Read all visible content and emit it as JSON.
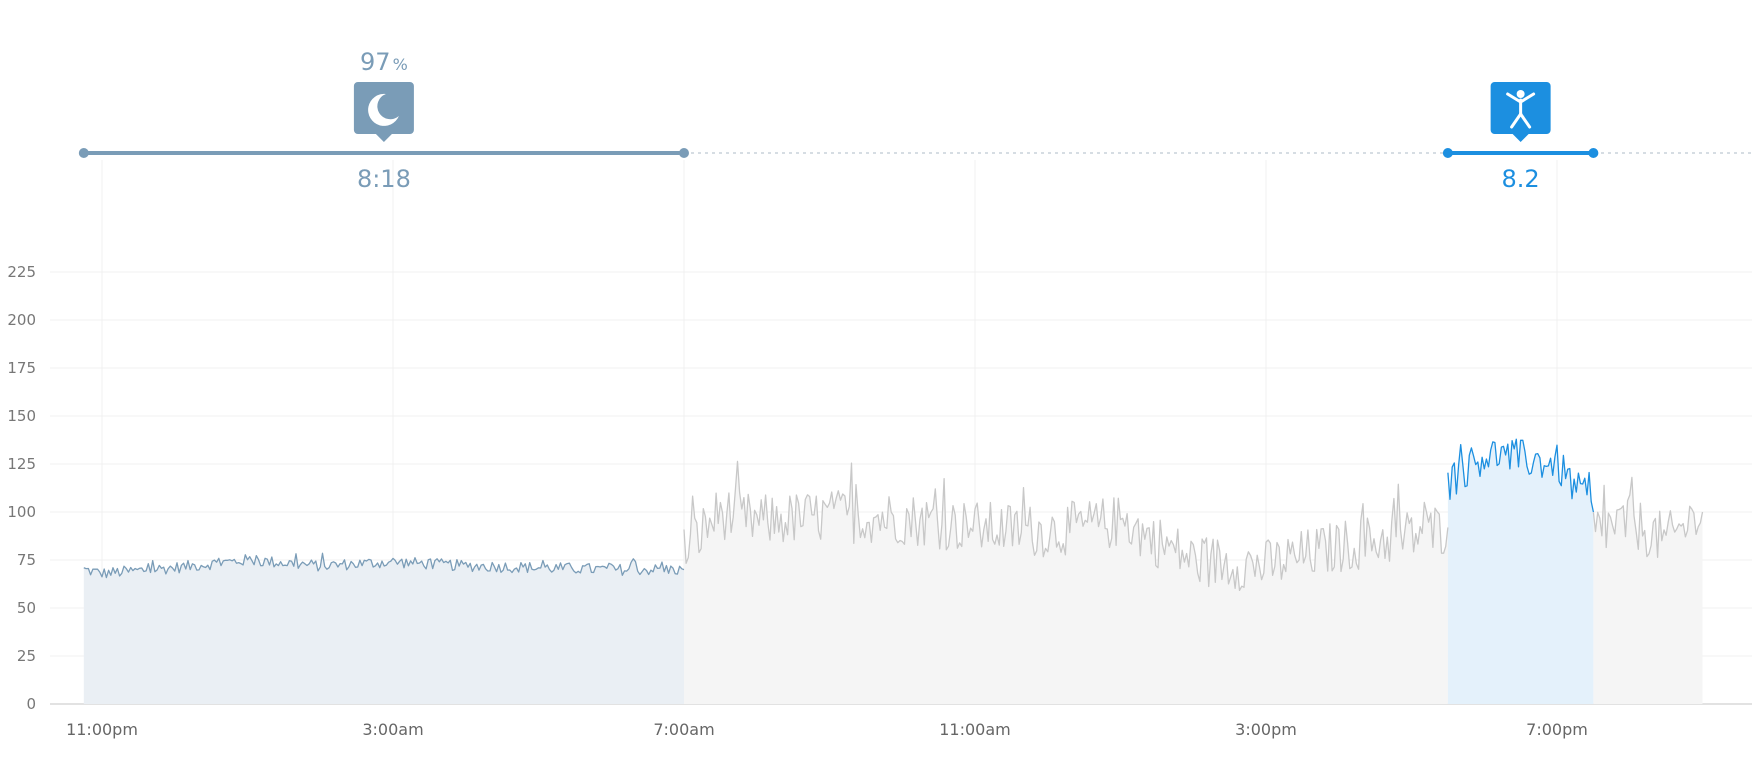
{
  "chart_data": {
    "type": "area",
    "title": "",
    "xlabel": "",
    "ylabel": "",
    "ylim": [
      0,
      225
    ],
    "y_ticks": [
      "0",
      "25",
      "50",
      "75",
      "100",
      "125",
      "150",
      "175",
      "200",
      "225"
    ],
    "x_ticks": [
      "11:00pm",
      "3:00am",
      "7:00am",
      "11:00am",
      "3:00pm",
      "7:00pm"
    ],
    "grid": true,
    "series": [
      {
        "id": "sleep",
        "color": "#7a9cb7",
        "fill": "#eaeff4",
        "x": [
          "10:45pm",
          "11:00pm",
          "12:00am",
          "1:00am",
          "2:00am",
          "3:00am",
          "4:00am",
          "5:00am",
          "6:00am",
          "7:00am"
        ],
        "values": [
          70,
          68,
          71,
          75,
          72,
          74,
          72,
          71,
          70,
          70
        ]
      },
      {
        "id": "day",
        "color": "#c8c8c8",
        "fill": "#f5f5f5",
        "x": [
          "7:00am",
          "7:30am",
          "8:00am",
          "9:00am",
          "10:00am",
          "11:00am",
          "12:00pm",
          "1:00pm",
          "2:00pm",
          "3:00pm",
          "4:00pm",
          "5:00pm",
          "5:30pm"
        ],
        "values": [
          80,
          100,
          95,
          98,
          97,
          92,
          90,
          95,
          75,
          72,
          82,
          88,
          92
        ]
      },
      {
        "id": "exercise",
        "color": "#1c8fe0",
        "fill": "#e4f1fb",
        "x": [
          "5:30pm",
          "6:00pm",
          "6:30pm",
          "7:00pm",
          "7:30pm"
        ],
        "values": [
          115,
          130,
          128,
          125,
          100
        ]
      },
      {
        "id": "evening",
        "color": "#c8c8c8",
        "fill": "#f5f5f5",
        "x": [
          "7:30pm",
          "8:00pm",
          "8:30pm",
          "9:00pm"
        ],
        "values": [
          90,
          95,
          85,
          100
        ]
      }
    ],
    "annotations": [
      {
        "id": "sleep",
        "icon": "moon-icon",
        "color": "#7a9cb7",
        "top_value": "97",
        "top_unit": "%",
        "bottom_value": "8:18",
        "start": "10:45pm",
        "end": "7:00am"
      },
      {
        "id": "exercise",
        "icon": "person-icon",
        "color": "#1c8fe0",
        "bottom_value": "8.2",
        "start": "5:30pm",
        "end": "7:30pm"
      }
    ]
  }
}
